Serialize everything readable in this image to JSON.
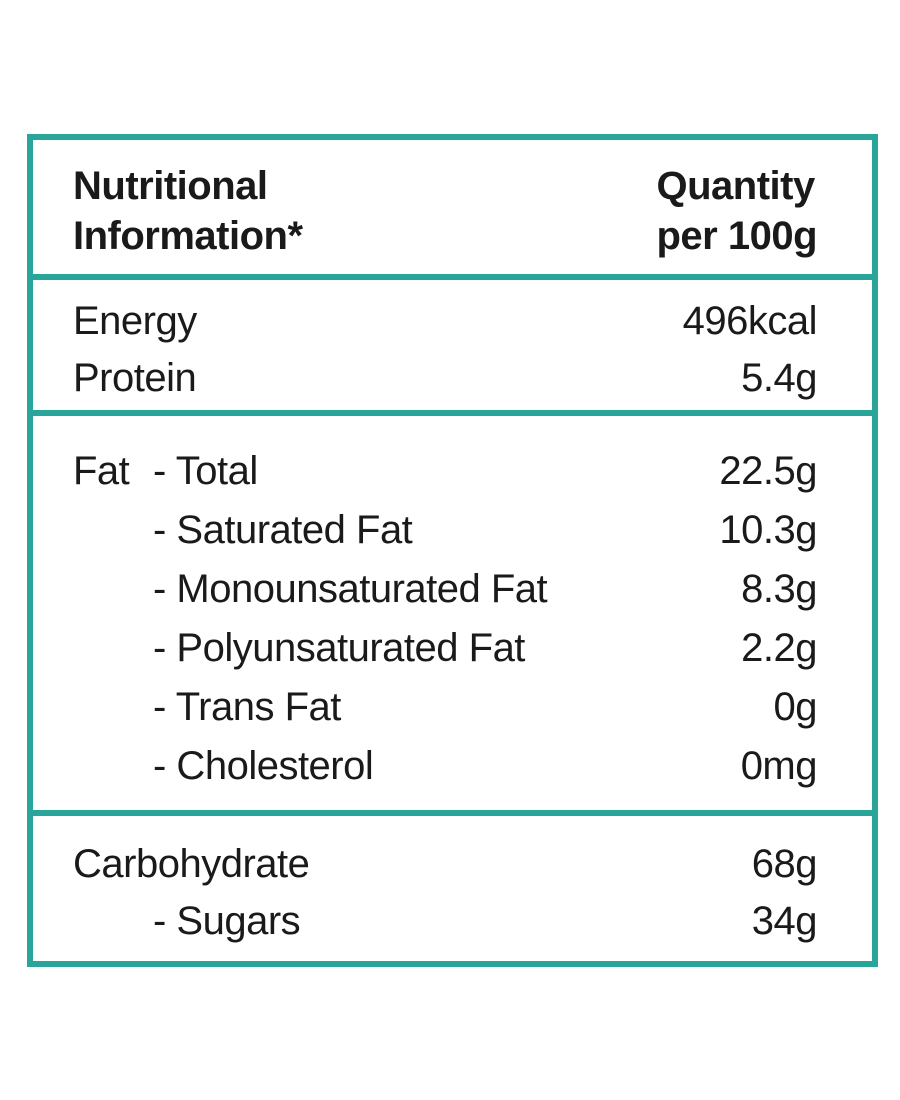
{
  "header": {
    "left_line1": "Nutritional",
    "left_line2": "Information*",
    "right_line1": "Quantity",
    "right_line2": "per 100g"
  },
  "section1": [
    {
      "label": "Energy",
      "value": "496kcal"
    },
    {
      "label": "Protein",
      "value": "5.4g"
    }
  ],
  "fat": {
    "prefix": "Fat",
    "total_label": "- Total",
    "total_value": "22.5g",
    "sub_items": [
      {
        "label": "- Saturated Fat",
        "value": "10.3g"
      },
      {
        "label": "- Monounsaturated Fat",
        "value": "8.3g"
      },
      {
        "label": "- Polyunsaturated Fat",
        "value": "2.2g"
      },
      {
        "label": "- Trans Fat",
        "value": "0g"
      },
      {
        "label": "- Cholesterol",
        "value": "0mg"
      }
    ]
  },
  "carbs": {
    "label": "Carbohydrate",
    "value": "68g",
    "sub_items": [
      {
        "label": "- Sugars",
        "value": "34g"
      }
    ]
  },
  "colors": {
    "border": "#2aa59a",
    "text": "#1a1a1a"
  }
}
